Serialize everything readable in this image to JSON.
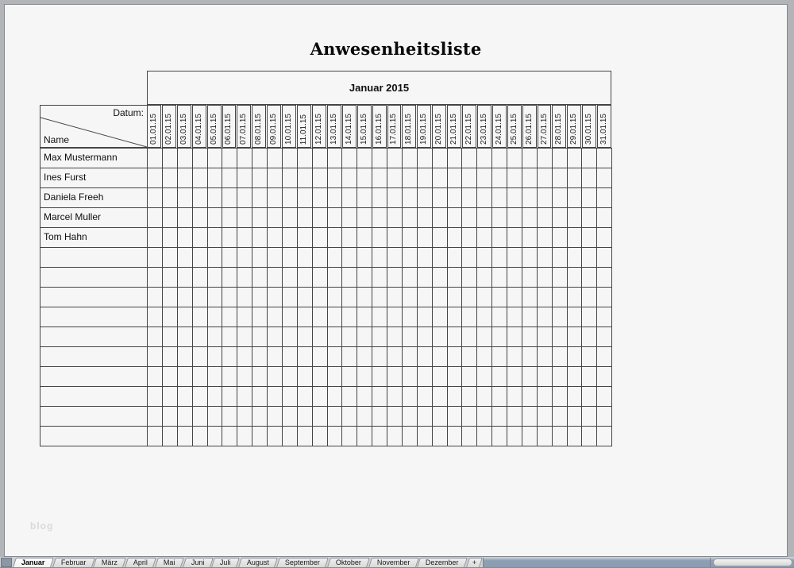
{
  "page": {
    "title": "Anwesenheitsliste",
    "watermark": "blog"
  },
  "table": {
    "month_header": "Januar 2015",
    "corner": {
      "top_label": "Datum:",
      "bottom_label": "Name"
    },
    "dates": [
      "01.01.15",
      "02.01.15",
      "03.01.15",
      "04.01.15",
      "05.01.15",
      "06.01.15",
      "07.01.15",
      "08.01.15",
      "09.01.15",
      "10.01.15",
      "11.01.15",
      "12.01.15",
      "13.01.15",
      "14.01.15",
      "15.01.15",
      "16.01.15",
      "17.01.15",
      "18.01.15",
      "19.01.15",
      "20.01.15",
      "21.01.15",
      "22.01.15",
      "23.01.15",
      "24.01.15",
      "25.01.15",
      "26.01.15",
      "27.01.15",
      "28.01.15",
      "29.01.15",
      "30.01.15",
      "31.01.15"
    ],
    "names": [
      "Max Mustermann",
      "Ines Furst",
      "Daniela Freeh",
      "Marcel Muller",
      "Tom Hahn"
    ],
    "empty_row_count": 10,
    "cell_values": []
  },
  "tab_bar": {
    "active_tab": "Januar",
    "tabs": [
      "Januar",
      "Februar",
      "März",
      "April",
      "Mai",
      "Juni",
      "Juli",
      "August",
      "September",
      "Oktober",
      "November",
      "Dezember"
    ],
    "add_tab_label": "+"
  },
  "colors": {
    "grid_border": "#454545",
    "page_background": "#f6f6f7",
    "desktop_background": "#b2b4b8",
    "tab_filler": "#8c9cb0"
  }
}
